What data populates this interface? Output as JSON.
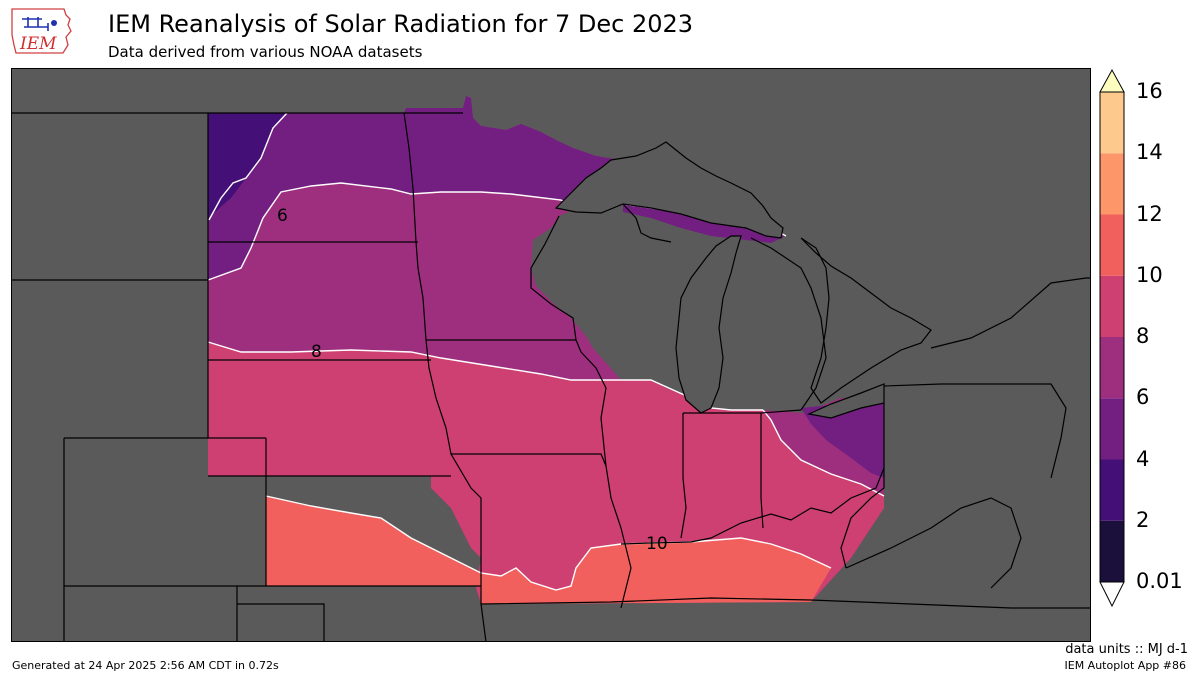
{
  "logo": {
    "text": "IEM"
  },
  "header": {
    "title": "IEM Reanalysis of Solar Radiation for 7 Dec 2023",
    "subtitle": "Data derived from various NOAA datasets"
  },
  "map": {
    "background_color": "#5a5a5a",
    "contour_labels": [
      "6",
      "8",
      "10"
    ]
  },
  "colorbar": {
    "levels": [
      "0.01",
      "2",
      "4",
      "6",
      "8",
      "10",
      "12",
      "14",
      "16"
    ],
    "colors": [
      "#1b0f3b",
      "#440f76",
      "#721f81",
      "#9e2f7f",
      "#cd4071",
      "#f1605d",
      "#fd9668",
      "#fec98d"
    ],
    "under_color": "#ffffff",
    "over_color": "#fcfdbf"
  },
  "footer": {
    "units": "data units :: MJ d-1",
    "generated": "Generated at 24 Apr 2025 2:56 AM CDT in 0.72s",
    "app": "IEM Autoplot App #86"
  }
}
